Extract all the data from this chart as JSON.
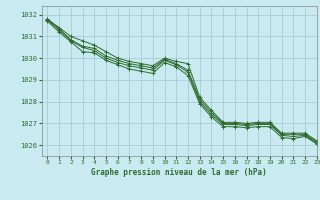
{
  "title": "Graphe pression niveau de la mer (hPa)",
  "bg_color": "#c8eaf0",
  "grid_color": "#aaccd8",
  "line_color": "#2d6b2d",
  "marker": "+",
  "xlim": [
    -0.5,
    23
  ],
  "ylim": [
    1025.5,
    1032.4
  ],
  "yticks": [
    1026,
    1027,
    1028,
    1029,
    1030,
    1031,
    1032
  ],
  "xticks": [
    0,
    1,
    2,
    3,
    4,
    5,
    6,
    7,
    8,
    9,
    10,
    11,
    12,
    13,
    14,
    15,
    16,
    17,
    18,
    19,
    20,
    21,
    22,
    23
  ],
  "series": [
    [
      1031.8,
      1031.4,
      1031.0,
      1030.8,
      1030.6,
      1030.3,
      1030.0,
      1029.85,
      1029.75,
      1029.65,
      1030.0,
      1029.85,
      1029.75,
      1028.2,
      1027.6,
      1027.05,
      1027.05,
      1027.0,
      1027.05,
      1027.05,
      1026.55,
      1026.55,
      1026.55,
      1026.2
    ],
    [
      1031.8,
      1031.35,
      1030.85,
      1030.55,
      1030.45,
      1030.1,
      1029.9,
      1029.75,
      1029.65,
      1029.55,
      1029.95,
      1029.75,
      1029.45,
      1028.1,
      1027.5,
      1027.0,
      1027.0,
      1026.95,
      1027.0,
      1027.0,
      1026.5,
      1026.5,
      1026.5,
      1026.15
    ],
    [
      1031.75,
      1031.3,
      1030.8,
      1030.5,
      1030.35,
      1030.0,
      1029.8,
      1029.65,
      1029.55,
      1029.45,
      1029.9,
      1029.7,
      1029.35,
      1028.0,
      1027.4,
      1026.95,
      1026.95,
      1026.9,
      1026.95,
      1026.95,
      1026.45,
      1026.4,
      1026.45,
      1026.1
    ],
    [
      1031.7,
      1031.2,
      1030.75,
      1030.3,
      1030.25,
      1029.9,
      1029.7,
      1029.5,
      1029.4,
      1029.3,
      1029.8,
      1029.6,
      1029.2,
      1027.9,
      1027.3,
      1026.85,
      1026.85,
      1026.8,
      1026.85,
      1026.85,
      1026.35,
      1026.3,
      1026.4,
      1026.05
    ]
  ]
}
